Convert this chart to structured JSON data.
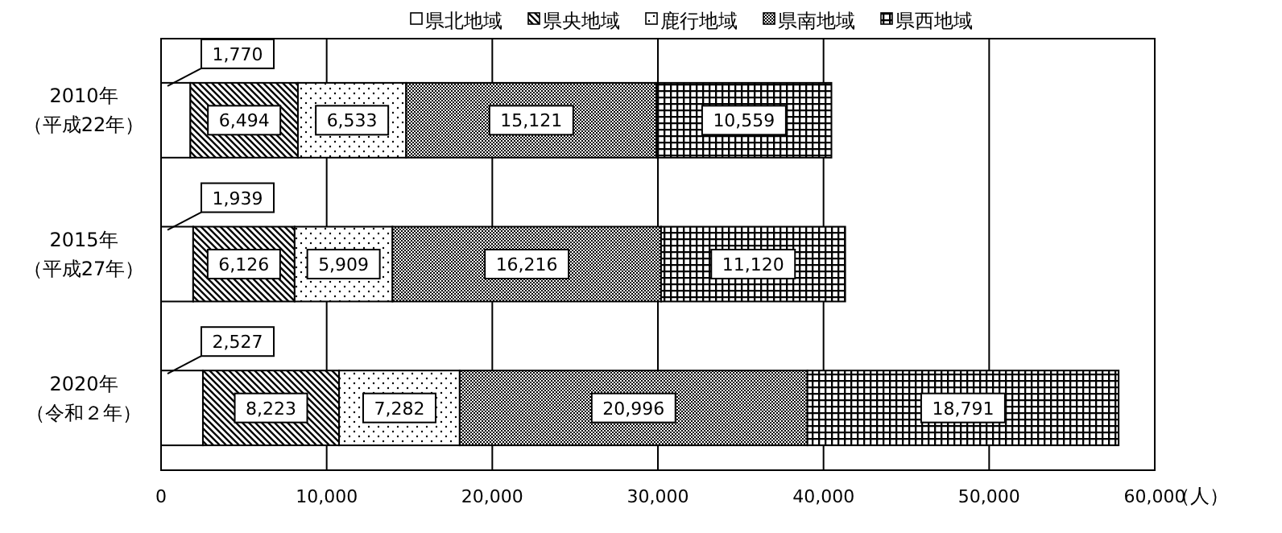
{
  "chart_data": {
    "type": "bar",
    "orientation": "horizontal",
    "stacked": true,
    "grid": "x",
    "legend": "top",
    "categories": [
      "2010年（平成22年）",
      "2015年（平成27年）",
      "2020年（令和２年）"
    ],
    "series": [
      {
        "name": "県北地域",
        "color": "#ffffff",
        "values": [
          1770,
          1939,
          2527
        ],
        "value_labels": [
          "1,770",
          "1,939",
          "2,527"
        ]
      },
      {
        "name": "県央地域",
        "color": "#000000",
        "values": [
          6494,
          6126,
          8223
        ],
        "value_labels": [
          "6,494",
          "6,126",
          "8,223"
        ]
      },
      {
        "name": "鹿行地域",
        "color": "#000000",
        "values": [
          6533,
          5909,
          7282
        ],
        "value_labels": [
          "6,533",
          "5,909",
          "7,282"
        ]
      },
      {
        "name": "県南地域",
        "color": "#000000",
        "values": [
          15121,
          16216,
          20996
        ],
        "value_labels": [
          "15,121",
          "16,216",
          "20,996"
        ]
      },
      {
        "name": "県西地域",
        "color": "#000000",
        "values": [
          10559,
          11120,
          18791
        ],
        "value_labels": [
          "10,559",
          "11,120",
          "18,791"
        ]
      }
    ],
    "xlim": [
      0,
      60000
    ],
    "xticks": [
      {
        "value": 0,
        "label": "0"
      },
      {
        "value": 10000,
        "label": "10,000"
      },
      {
        "value": 20000,
        "label": "20,000"
      },
      {
        "value": 30000,
        "label": "30,000"
      },
      {
        "value": 40000,
        "label": "40,000"
      },
      {
        "value": 50000,
        "label": "50,000"
      },
      {
        "value": 60000,
        "label": "60,000"
      }
    ],
    "xlabel": "（人）"
  }
}
